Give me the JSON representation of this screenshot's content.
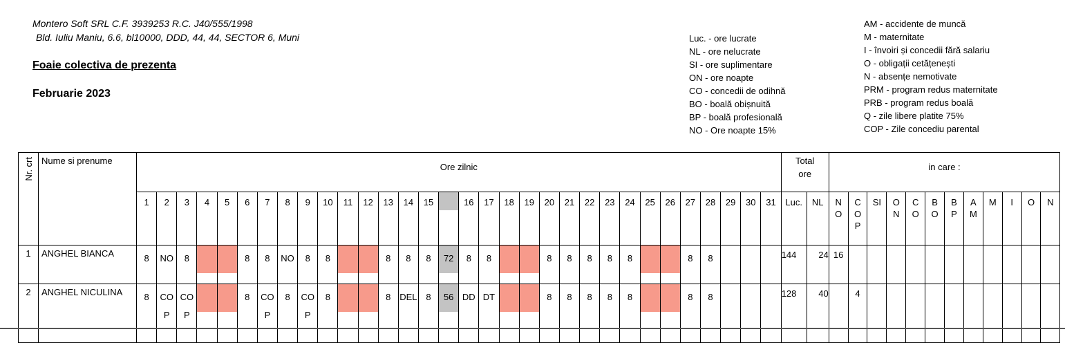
{
  "company": {
    "line1": "Montero Soft SRL  C.F. 3939253  R.C. J40/555/1998",
    "line2": "Bld. Iuliu Maniu, 6.6, bl10000, DDD, 44, 44, SECTOR 6, Muni"
  },
  "title": "Foaie colectiva de prezenta",
  "period": "Februarie 2023",
  "legend_left": [
    "Luc. - ore lucrate",
    "NL - ore nelucrate",
    "SI - ore suplimentare",
    "ON - ore noapte",
    "CO - concedii de odihnă",
    "BO - boală obișnuită",
    "BP - boală profesională",
    "NO - Ore noapte 15%"
  ],
  "legend_right": [
    "AM - accidente de muncă",
    "M - maternitate",
    "I - învoiri și concedii fără salariu",
    "O - obligații cetățenești",
    "N - absențe nemotivate",
    "PRM - program redus maternitate",
    "PRB - program redus boală",
    "Q - zile libere platite 75%",
    "COP - Zile concediu parental"
  ],
  "colors": {
    "weekend": "#f79a8b",
    "weekly_total": "#c3c3c3"
  },
  "table": {
    "nr_header": "Nr. crt",
    "name_header": "Nume si prenume",
    "days_header": "Ore zilnic",
    "total_header": "Total\nore",
    "incare_header": "in care :",
    "days": [
      "1",
      "2",
      "3",
      "4",
      "5",
      "6",
      "7",
      "8",
      "9",
      "10",
      "11",
      "12",
      "13",
      "14",
      "15",
      "",
      "16",
      "17",
      "18",
      "19",
      "20",
      "21",
      "22",
      "23",
      "24",
      "25",
      "26",
      "27",
      "28",
      "29",
      "30",
      "31"
    ],
    "total_cols": [
      "Luc.",
      "NL"
    ],
    "incare_cols": [
      "N\nO",
      "C\nO\nP",
      "SI",
      "O\nN",
      "C\nO",
      "B\nO",
      "B\nP",
      "A\nM",
      "M",
      "I",
      "O",
      "N"
    ],
    "rows": [
      {
        "nr": "1",
        "name": "ANGHEL BIANCA",
        "days": [
          "8",
          "NO",
          "8",
          "#w",
          "#w",
          "8",
          "8",
          "NO",
          "8",
          "8",
          "#w",
          "#w",
          "8",
          "8",
          "8",
          "#t72",
          "8",
          "8",
          "#w",
          "#w",
          "8",
          "8",
          "8",
          "8",
          "8",
          "#w",
          "#w",
          "8",
          "8",
          "",
          "",
          ""
        ],
        "totals": [
          "144",
          "24"
        ],
        "incare": [
          "16",
          "",
          "",
          "",
          "",
          "",
          "",
          "",
          "",
          "",
          "",
          ""
        ]
      },
      {
        "nr": "2",
        "name": "ANGHEL NICULINA",
        "days": [
          "8",
          "COP",
          "COP",
          "#w",
          "#w",
          "8",
          "COP",
          "8",
          "COP",
          "8",
          "#w",
          "#w",
          "8",
          "DEL",
          "8",
          "#t56",
          "DD",
          "DT",
          "#w",
          "#w",
          "8",
          "8",
          "8",
          "8",
          "8",
          "#w",
          "#w",
          "8",
          "8",
          "",
          "",
          ""
        ],
        "totals": [
          "128",
          "40"
        ],
        "incare": [
          "",
          "4",
          "",
          "",
          "",
          "",
          "",
          "",
          "",
          "",
          "",
          ""
        ]
      }
    ]
  }
}
